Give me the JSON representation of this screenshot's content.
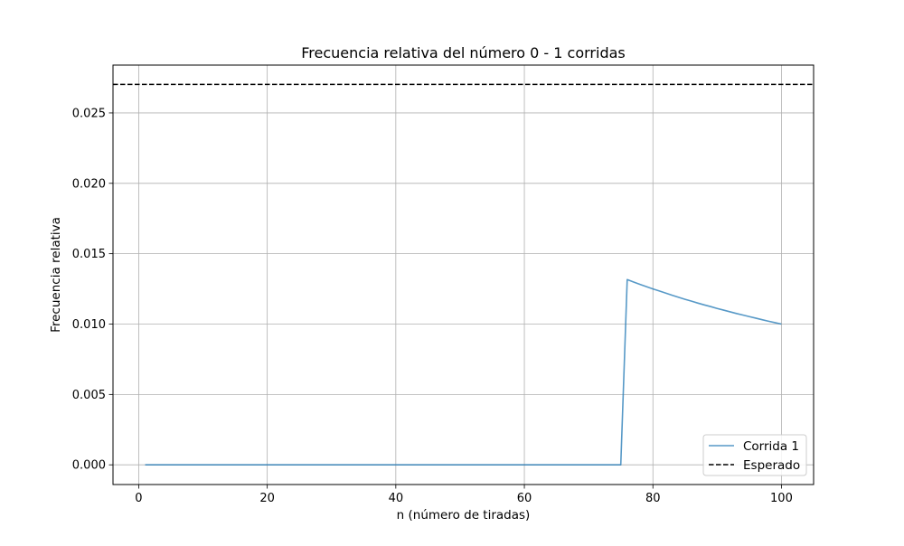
{
  "chart_data": {
    "type": "line",
    "title": "Frecuencia relativa del número 0 - 1 corridas",
    "xlabel": "n (número de tiradas)",
    "ylabel": "Frecuencia relativa",
    "xlim": [
      -4,
      105
    ],
    "ylim": [
      -0.0014,
      0.0284
    ],
    "xticks": [
      0,
      20,
      40,
      60,
      80,
      100
    ],
    "yticks": [
      0.0,
      0.005,
      0.01,
      0.015,
      0.02,
      0.025
    ],
    "xtick_labels": [
      "0",
      "20",
      "40",
      "60",
      "80",
      "100"
    ],
    "ytick_labels": [
      "0.000",
      "0.005",
      "0.010",
      "0.015",
      "0.020",
      "0.025"
    ],
    "grid": true,
    "legend_position": "lower-right",
    "series": [
      {
        "name": "Corrida 1",
        "color": "#1f77b4",
        "style": "solid",
        "x_start": 1,
        "x_end": 100,
        "values": [
          0,
          0,
          0,
          0,
          0,
          0,
          0,
          0,
          0,
          0,
          0,
          0,
          0,
          0,
          0,
          0,
          0,
          0,
          0,
          0,
          0,
          0,
          0,
          0,
          0,
          0,
          0,
          0,
          0,
          0,
          0,
          0,
          0,
          0,
          0,
          0,
          0,
          0,
          0,
          0,
          0,
          0,
          0,
          0,
          0,
          0,
          0,
          0,
          0,
          0,
          0,
          0,
          0,
          0,
          0,
          0,
          0,
          0,
          0,
          0,
          0,
          0,
          0,
          0,
          0,
          0,
          0,
          0,
          0,
          0,
          0,
          0,
          0,
          0,
          0,
          0.01316,
          0.01299,
          0.01282,
          0.01266,
          0.0125,
          0.01235,
          0.0122,
          0.01205,
          0.0119,
          0.01176,
          0.01163,
          0.01149,
          0.01136,
          0.01124,
          0.01111,
          0.01099,
          0.01087,
          0.01075,
          0.01064,
          0.01053,
          0.01042,
          0.01031,
          0.0102,
          0.0101,
          0.01
        ]
      },
      {
        "name": "Esperado",
        "color": "#000000",
        "style": "dashed",
        "y_constant": 0.027027
      }
    ]
  }
}
